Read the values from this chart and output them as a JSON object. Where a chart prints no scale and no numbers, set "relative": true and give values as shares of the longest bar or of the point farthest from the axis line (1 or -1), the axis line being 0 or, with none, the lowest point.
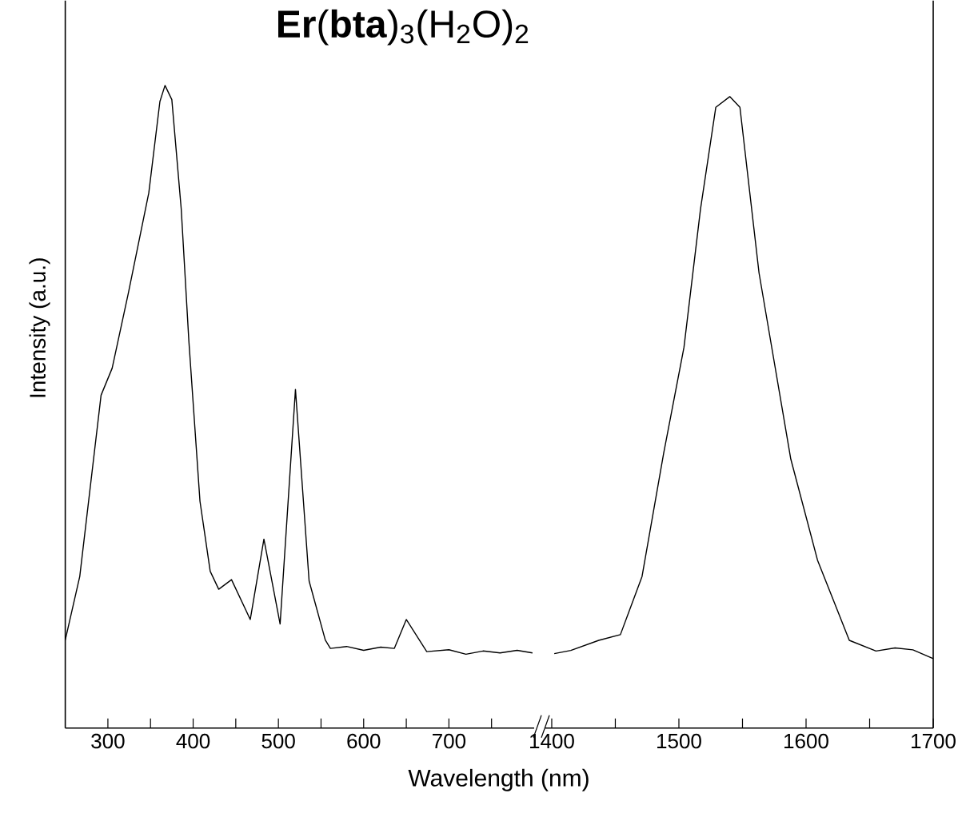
{
  "chart_data": [
    {
      "type": "line",
      "title": "**Er**(**bta**)$_{3}$(H$_{2}$O)$_{2}$",
      "xlabel": "Wavelength (nm)",
      "ylabel": "Intensity (a.u.)",
      "relative": true,
      "tick_labels": "x",
      "xlim": [
        250,
        800
      ],
      "xticks": [
        300,
        {
          "value": 350,
          "label": null
        },
        400,
        {
          "value": 450,
          "label": null
        },
        500,
        {
          "value": 550,
          "label": null
        },
        600,
        {
          "value": 650,
          "label": null
        },
        700,
        {
          "value": 750,
          "label": null
        }
      ],
      "series": [
        {
          "color": "#000000",
          "x": [
            250,
            267,
            292,
            305,
            324,
            348,
            361,
            367,
            375,
            386,
            395,
            408,
            420,
            430,
            445,
            467,
            483,
            502,
            520,
            536,
            555,
            561,
            580,
            600,
            620,
            636,
            650,
            674,
            700,
            720,
            740,
            760,
            780,
            798
          ],
          "values": [
            0.137,
            0.236,
            0.518,
            0.56,
            0.677,
            0.833,
            0.975,
            1,
            0.978,
            0.808,
            0.602,
            0.353,
            0.244,
            0.216,
            0.231,
            0.169,
            0.294,
            0.162,
            0.527,
            0.229,
            0.137,
            0.124,
            0.127,
            0.121,
            0.126,
            0.124,
            0.169,
            0.119,
            0.122,
            0.115,
            0.12,
            0.117,
            0.121,
            0.117
          ]
        }
      ]
    },
    {
      "type": "line",
      "relative": true,
      "tick_labels": "x",
      "xlim": [
        1395,
        1700
      ],
      "xticks": [
        1400,
        {
          "value": 1450,
          "label": null
        },
        1500,
        {
          "value": 1550,
          "label": null
        },
        1600,
        {
          "value": 1650,
          "label": null
        },
        1700
      ],
      "series": [
        {
          "color": "#000000",
          "x": [
            1402,
            1415,
            1437,
            1454,
            1471,
            1488,
            1504,
            1517,
            1529,
            1540,
            1548,
            1563,
            1588,
            1609,
            1634,
            1655,
            1670,
            1684,
            1700
          ],
          "values": [
            0.118,
            0.123,
            0.139,
            0.148,
            0.24,
            0.435,
            0.603,
            0.822,
            0.983,
            1,
            0.983,
            0.721,
            0.426,
            0.266,
            0.139,
            0.122,
            0.127,
            0.124,
            0.11
          ]
        }
      ]
    }
  ]
}
